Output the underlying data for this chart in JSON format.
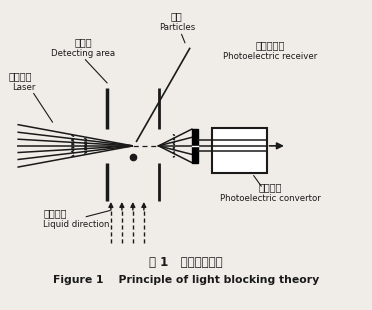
{
  "title_cn": "图 1   光阻法原理图",
  "title_en": "Figure 1    Principle of light blocking theory",
  "labels": {
    "laser_cn": "激光光源",
    "laser_en": "Laser",
    "detect_cn": "检测区",
    "detect_en": "Detecting area",
    "particle_cn": "颗粒",
    "particle_en": "Particles",
    "receiver_cn": "光电接收器",
    "receiver_en": "Photoelectric receiver",
    "convertor_cn": "光电转换",
    "convertor_en": "Photoelectric convertor",
    "liquid_cn": "液流方向",
    "liquid_en": "Liquid direction"
  },
  "bg_color": "#f0ede8",
  "line_color": "#1a1a1a",
  "fig_width": 3.72,
  "fig_height": 3.1,
  "dpi": 100
}
